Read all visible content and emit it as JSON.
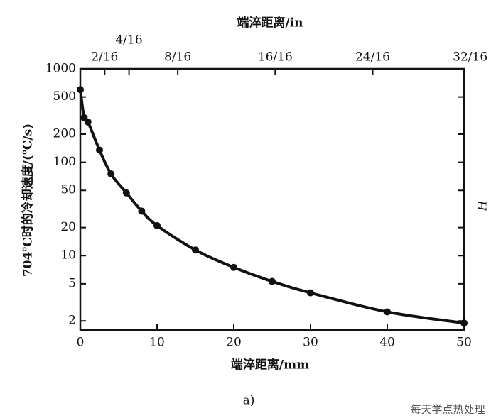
{
  "chart_data": {
    "type": "line",
    "x_label": "端淬距离/mm",
    "x2_label": "端淬距离/in",
    "y_label": "704℃时的冷却速度/(℃/s)",
    "y2_label": "H",
    "caption": "a)",
    "watermark": "每天学点热处理",
    "log_y": true,
    "color": "#111111",
    "x": [
      0,
      0.5,
      1,
      2.5,
      4,
      6,
      8,
      10,
      15,
      20,
      25,
      30,
      40,
      50
    ],
    "values": [
      600,
      300,
      270,
      135,
      75,
      47,
      30,
      21,
      11.5,
      7.5,
      5.3,
      4,
      2.5,
      1.9
    ],
    "xlim": [
      0,
      50
    ],
    "xticks": [
      0,
      10,
      20,
      30,
      40,
      50
    ],
    "x2lim": [
      0,
      1.9685
    ],
    "x2ticks": [
      {
        "value": 0.125,
        "label": "2/16"
      },
      {
        "value": 0.25,
        "label": "4/16"
      },
      {
        "value": 0.5,
        "label": "8/16"
      },
      {
        "value": 1,
        "label": "16/16"
      },
      {
        "value": 1.5,
        "label": "24/16"
      },
      {
        "value": 2,
        "label": "32/16"
      }
    ],
    "ylim": [
      1.6,
      1000
    ],
    "yticks": [
      2,
      5,
      10,
      20,
      50,
      100,
      200,
      500,
      1000
    ]
  }
}
